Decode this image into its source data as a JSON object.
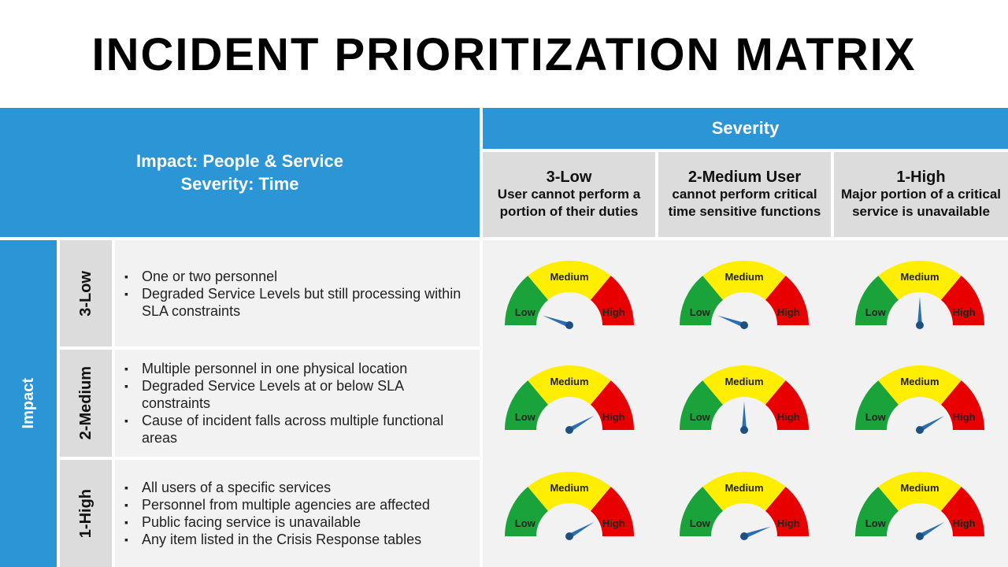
{
  "title": "INCIDENT PRIORITIZATION MATRIX",
  "header": {
    "impact_line": "Impact: People & Service",
    "severity_line": "Severity: Time",
    "severity_title": "Severity",
    "impact_title": "Impact"
  },
  "columns": [
    {
      "level": "3-Low",
      "desc": "User cannot perform a portion of their duties"
    },
    {
      "level": "2-Medium User",
      "desc": "cannot perform critical time sensitive functions"
    },
    {
      "level": "1-High",
      "desc": "Major portion of a critical service is unavailable"
    }
  ],
  "rows": [
    {
      "level": "3-Low",
      "bullets": [
        "One or two personnel",
        "Degraded Service Levels but still processing within SLA constraints"
      ]
    },
    {
      "level": "2-Medium",
      "bullets": [
        "Multiple personnel in one physical location",
        "Degraded Service Levels at or below SLA constraints",
        "Cause of incident falls across multiple functional areas"
      ]
    },
    {
      "level": "1-High",
      "bullets": [
        "All users of a specific services",
        "Personnel from multiple agencies are affected",
        "Public facing service is unavailable",
        "Any item listed in the Crisis Response tables"
      ]
    }
  ],
  "gauge_labels": {
    "low": "Low",
    "medium": "Medium",
    "high": "High"
  },
  "gauge_colors": {
    "low": "#1aa33a",
    "medium": "#ffee00",
    "high": "#e80000",
    "needle": "#2a6fb0"
  },
  "gauges": [
    [
      {
        "needle_deg": 20
      },
      {
        "needle_deg": 20
      },
      {
        "needle_deg": 90
      }
    ],
    [
      {
        "needle_deg": 150
      },
      {
        "needle_deg": 90
      },
      {
        "needle_deg": 150
      }
    ],
    [
      {
        "needle_deg": 150
      },
      {
        "needle_deg": 160
      },
      {
        "needle_deg": 150
      }
    ]
  ]
}
